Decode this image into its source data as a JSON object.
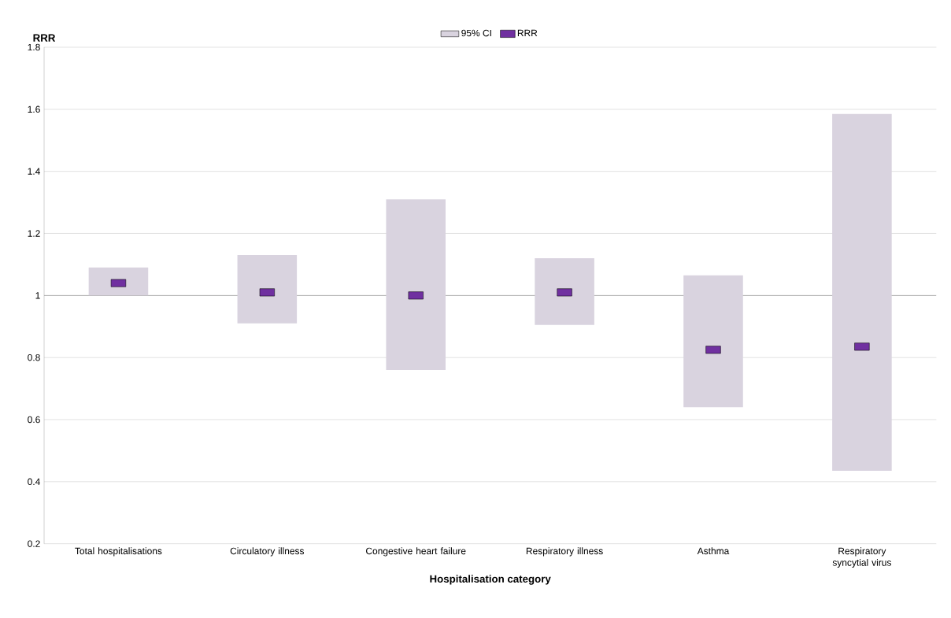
{
  "chart_data": {
    "type": "bar",
    "xlabel": "Hospitalisation category",
    "ylabel": "RRR",
    "categories": [
      "Total hospitalisations",
      "Circulatory illness",
      "Congestive heart failure",
      "Respiratory illness",
      "Asthma",
      "Respiratory syncytial virus"
    ],
    "series": [
      {
        "name": "95% CI",
        "color": "#d9d3df",
        "base": [
          1.0,
          0.91,
          0.76,
          0.905,
          0.64,
          0.435
        ],
        "values": [
          0.09,
          0.22,
          0.55,
          0.215,
          0.425,
          1.15
        ]
      },
      {
        "name": "RRR",
        "type": "scatter",
        "marker": "square",
        "color": "#7030a0",
        "values": [
          1.04,
          1.01,
          1.0,
          1.01,
          0.825,
          0.835
        ]
      }
    ],
    "ylim": [
      0.2,
      1.8
    ],
    "yticks": [
      0.2,
      0.4,
      0.6,
      0.8,
      1,
      1.2,
      1.4,
      1.6,
      1.8
    ],
    "ref_lines": [
      {
        "axis": "y",
        "value": 1,
        "color": "#a6a6a6"
      }
    ],
    "grid": "y",
    "legend": "top"
  }
}
